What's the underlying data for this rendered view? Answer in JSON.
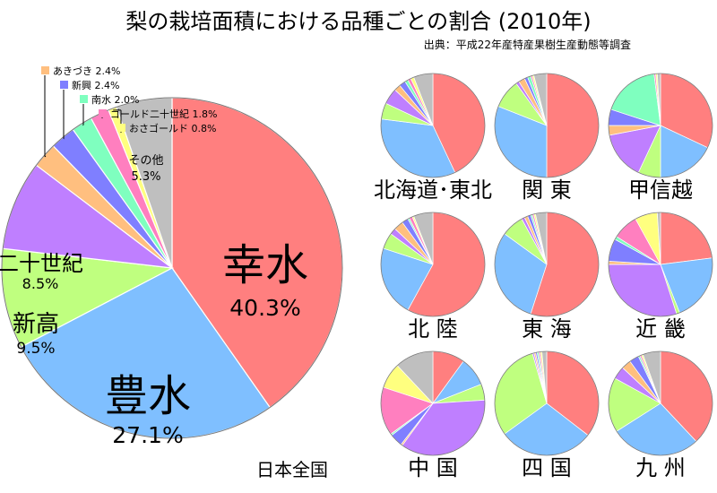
{
  "title": "梨の栽培面積における品種ごとの割合 (2010年)",
  "source": "出典：平成22年産特産果樹生産動態等調査",
  "colors": {
    "幸水": "#ff7f7f",
    "豊水": "#7fbfff",
    "新高": "#bfff7f",
    "二十世紀": "#bf7fff",
    "あきづき": "#ffbf7f",
    "新興": "#7f7fff",
    "南水": "#7fffbf",
    "ゴールド二十世紀": "#ff7fbf",
    "おさゴールド": "#ffff7f",
    "その他": "#bfbfbf"
  },
  "chart_data": [
    {
      "type": "pie",
      "region": "日本全国",
      "slices": [
        {
          "label": "幸水",
          "value": 40.3
        },
        {
          "label": "豊水",
          "value": 27.1
        },
        {
          "label": "新高",
          "value": 9.5
        },
        {
          "label": "二十世紀",
          "value": 8.5
        },
        {
          "label": "あきづき",
          "value": 2.4
        },
        {
          "label": "新興",
          "value": 2.4
        },
        {
          "label": "南水",
          "value": 2.0
        },
        {
          "label": "ゴールド二十世紀",
          "value": 1.8
        },
        {
          "label": "おさゴールド",
          "value": 0.8
        },
        {
          "label": "その他",
          "value": 5.3
        }
      ],
      "labels": {
        "幸水": {
          "name": "幸水",
          "pct": "40.3%"
        },
        "豊水": {
          "name": "豊水",
          "pct": "27.1%"
        },
        "新高": {
          "name": "新高",
          "pct": "9.5%"
        },
        "二十世紀": {
          "name": "二十世紀",
          "pct": "8.5%"
        },
        "その他": {
          "name": "その他",
          "pct": "5.3%"
        },
        "あきづき": {
          "text": "あきづき 2.4%"
        },
        "新興": {
          "text": "新興 2.4%"
        },
        "南水": {
          "text": "南水 2.0%"
        },
        "ゴールド二十世紀": {
          "text": "ゴールド二十世紀 1.8%"
        },
        "おさゴールド": {
          "text": "おさゴールド 0.8%"
        }
      }
    },
    {
      "type": "pie",
      "region": "北海道･東北",
      "slices": [
        {
          "label": "幸水",
          "value": 43
        },
        {
          "label": "豊水",
          "value": 34
        },
        {
          "label": "新高",
          "value": 5
        },
        {
          "label": "二十世紀",
          "value": 5
        },
        {
          "label": "あきづき",
          "value": 2
        },
        {
          "label": "新興",
          "value": 2
        },
        {
          "label": "南水",
          "value": 1
        },
        {
          "label": "ゴールド二十世紀",
          "value": 1
        },
        {
          "label": "おさゴールド",
          "value": 1
        },
        {
          "label": "その他",
          "value": 6
        }
      ]
    },
    {
      "type": "pie",
      "region": "関 東",
      "slices": [
        {
          "label": "幸水",
          "value": 50
        },
        {
          "label": "豊水",
          "value": 31
        },
        {
          "label": "新高",
          "value": 9
        },
        {
          "label": "二十世紀",
          "value": 1
        },
        {
          "label": "あきづき",
          "value": 2
        },
        {
          "label": "新興",
          "value": 1
        },
        {
          "label": "南水",
          "value": 1
        },
        {
          "label": "ゴールド二十世紀",
          "value": 0.5
        },
        {
          "label": "おさゴールド",
          "value": 0.5
        },
        {
          "label": "その他",
          "value": 4
        }
      ]
    },
    {
      "type": "pie",
      "region": "甲信越",
      "slices": [
        {
          "label": "幸水",
          "value": 32
        },
        {
          "label": "豊水",
          "value": 18
        },
        {
          "label": "新高",
          "value": 7
        },
        {
          "label": "二十世紀",
          "value": 15
        },
        {
          "label": "あきづき",
          "value": 3
        },
        {
          "label": "新興",
          "value": 5
        },
        {
          "label": "南水",
          "value": 18
        },
        {
          "label": "ゴールド二十世紀",
          "value": 0.5
        },
        {
          "label": "おさゴールド",
          "value": 0.5
        },
        {
          "label": "その他",
          "value": 1
        }
      ]
    },
    {
      "type": "pie",
      "region": "北 陸",
      "slices": [
        {
          "label": "幸水",
          "value": 58
        },
        {
          "label": "豊水",
          "value": 22
        },
        {
          "label": "新高",
          "value": 5
        },
        {
          "label": "二十世紀",
          "value": 2
        },
        {
          "label": "あきづき",
          "value": 3
        },
        {
          "label": "新興",
          "value": 2
        },
        {
          "label": "南水",
          "value": 0.5
        },
        {
          "label": "ゴールド二十世紀",
          "value": 1
        },
        {
          "label": "おさゴールド",
          "value": 0.5
        },
        {
          "label": "その他",
          "value": 6
        }
      ]
    },
    {
      "type": "pie",
      "region": "東 海",
      "slices": [
        {
          "label": "幸水",
          "value": 55
        },
        {
          "label": "豊水",
          "value": 30
        },
        {
          "label": "新高",
          "value": 7
        },
        {
          "label": "二十世紀",
          "value": 1
        },
        {
          "label": "あきづき",
          "value": 1
        },
        {
          "label": "新興",
          "value": 1
        },
        {
          "label": "南水",
          "value": 0.5
        },
        {
          "label": "ゴールド二十世紀",
          "value": 0.5
        },
        {
          "label": "おさゴールド",
          "value": 0.5
        },
        {
          "label": "その他",
          "value": 3.5
        }
      ]
    },
    {
      "type": "pie",
      "region": "近 畿",
      "slices": [
        {
          "label": "幸水",
          "value": 23
        },
        {
          "label": "豊水",
          "value": 21
        },
        {
          "label": "新高",
          "value": 1
        },
        {
          "label": "二十世紀",
          "value": 30
        },
        {
          "label": "あきづき",
          "value": 1
        },
        {
          "label": "新興",
          "value": 7
        },
        {
          "label": "南水",
          "value": 1
        },
        {
          "label": "ゴールド二十世紀",
          "value": 8
        },
        {
          "label": "おさゴールド",
          "value": 7
        },
        {
          "label": "その他",
          "value": 1
        }
      ]
    },
    {
      "type": "pie",
      "region": "中 国",
      "slices": [
        {
          "label": "幸水",
          "value": 10
        },
        {
          "label": "豊水",
          "value": 9
        },
        {
          "label": "新高",
          "value": 5
        },
        {
          "label": "二十世紀",
          "value": 36
        },
        {
          "label": "あきづき",
          "value": 0.5
        },
        {
          "label": "新興",
          "value": 4
        },
        {
          "label": "南水",
          "value": 0.5
        },
        {
          "label": "ゴールド二十世紀",
          "value": 15
        },
        {
          "label": "おさゴールド",
          "value": 8
        },
        {
          "label": "その他",
          "value": 12
        }
      ]
    },
    {
      "type": "pie",
      "region": "四 国",
      "slices": [
        {
          "label": "幸水",
          "value": 36
        },
        {
          "label": "豊水",
          "value": 30
        },
        {
          "label": "新高",
          "value": 31
        },
        {
          "label": "二十世紀",
          "value": 0.5
        },
        {
          "label": "あきづき",
          "value": 0.5
        },
        {
          "label": "新興",
          "value": 0.5
        },
        {
          "label": "南水",
          "value": 0.5
        },
        {
          "label": "ゴールド二十世紀",
          "value": 0.5
        },
        {
          "label": "おさゴールド",
          "value": 0.5
        },
        {
          "label": "その他",
          "value": 1.5
        }
      ]
    },
    {
      "type": "pie",
      "region": "九 州",
      "slices": [
        {
          "label": "幸水",
          "value": 38
        },
        {
          "label": "豊水",
          "value": 28
        },
        {
          "label": "新高",
          "value": 17
        },
        {
          "label": "二十世紀",
          "value": 4
        },
        {
          "label": "あきづき",
          "value": 3
        },
        {
          "label": "新興",
          "value": 3
        },
        {
          "label": "南水",
          "value": 0.5
        },
        {
          "label": "ゴールド二十世紀",
          "value": 0.5
        },
        {
          "label": "おさゴールド",
          "value": 0.5
        },
        {
          "label": "その他",
          "value": 5.5
        }
      ]
    }
  ]
}
